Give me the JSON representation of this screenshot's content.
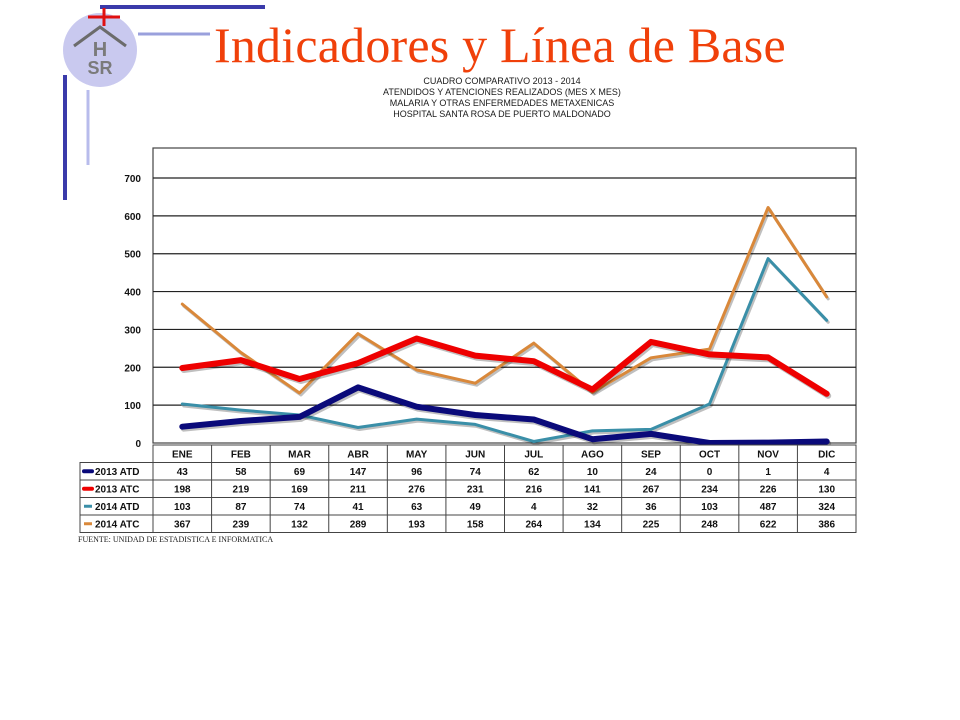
{
  "slide": {
    "title": "Indicadores y Línea de Base",
    "logo_text": [
      "H",
      "SR"
    ],
    "source": "FUENTE: UNIDAD DE ESTADISTICA E INFORMATICA"
  },
  "chart_data": {
    "type": "line",
    "title_lines": [
      "CUADRO COMPARATIVO 2013 - 2014",
      "ATENDIDOS Y ATENCIONES REALIZADOS (MES X MES)",
      "MALARIA Y OTRAS ENFERMEDADES METAXENICAS",
      "HOSPITAL SANTA ROSA DE PUERTO MALDONADO"
    ],
    "categories": [
      "ENE",
      "FEB",
      "MAR",
      "ABR",
      "MAY",
      "JUN",
      "JUL",
      "AGO",
      "SEP",
      "OCT",
      "NOV",
      "DIC"
    ],
    "ylim": [
      0,
      700
    ],
    "yticks": [
      0,
      100,
      200,
      300,
      400,
      500,
      600,
      700
    ],
    "grid": true,
    "legend": "data-table",
    "series": [
      {
        "name": "2013 ATD",
        "color": "#0a0a7a",
        "values": [
          43,
          58,
          69,
          147,
          96,
          74,
          62,
          10,
          24,
          0,
          1,
          4
        ]
      },
      {
        "name": "2013 ATC",
        "color": "#ee0000",
        "values": [
          198,
          219,
          169,
          211,
          276,
          231,
          216,
          141,
          267,
          234,
          226,
          130
        ]
      },
      {
        "name": "2014 ATD",
        "color": "#3a8fa8",
        "values": [
          103,
          87,
          74,
          41,
          63,
          49,
          4,
          32,
          36,
          103,
          487,
          324
        ]
      },
      {
        "name": "2014 ATC",
        "color": "#d9883a",
        "values": [
          367,
          239,
          132,
          289,
          193,
          158,
          264,
          134,
          225,
          248,
          622,
          386
        ]
      }
    ]
  }
}
